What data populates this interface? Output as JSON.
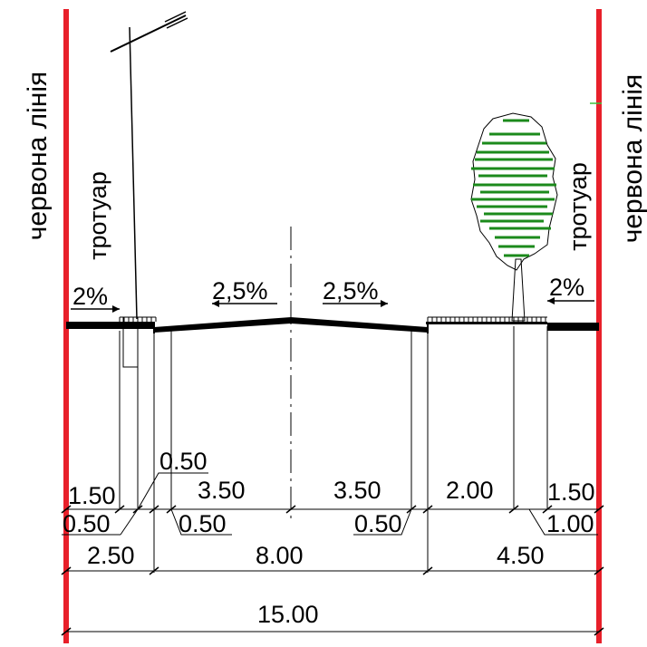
{
  "labels": {
    "red_line_left": "червона лінія",
    "red_line_right": "червона лінія",
    "sidewalk_left": "тротуар",
    "sidewalk_right": "тротуар"
  },
  "slopes": {
    "left_sidewalk": "2%",
    "left_carriageway": "2,5%",
    "right_carriageway": "2,5%",
    "right_sidewalk": "2%"
  },
  "dimensions": {
    "sidewalk_left": "1.50",
    "strip_left_a": "0.50",
    "strip_left_b": "0.50",
    "curb_left": "0.50",
    "lane_left": "3.50",
    "lane_right": "3.50",
    "curb_right": "0.50",
    "green_right": "2.00",
    "sidewalk_right": "1.50",
    "strip_right": "1.00",
    "zone_left": "2.50",
    "carriageway": "8.00",
    "zone_right": "4.50",
    "total": "15.00"
  },
  "colors": {
    "red_line": "#e8202a",
    "tree_green": "#1b8a1b",
    "ink": "#000000"
  },
  "icons": {
    "lamp": "street-lamp-icon",
    "tree": "tree-icon"
  }
}
